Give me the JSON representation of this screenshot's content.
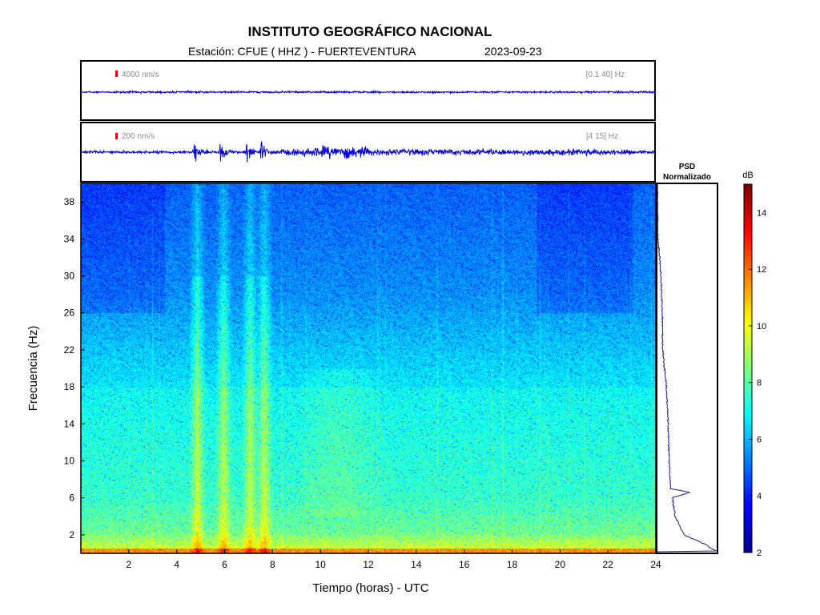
{
  "header": {
    "title": "INSTITUTO GEOGRÁFICO NACIONAL",
    "station": "Estación:  CFUE ( HHZ ) - FUERTEVENTURA",
    "date": "2023-09-23"
  },
  "trace_top": {
    "scale_label": "4000 nm/s",
    "band_label": "[0.1 40]  Hz",
    "scale_color": "#e00000"
  },
  "trace_bottom": {
    "scale_label": "200 nm/s",
    "band_label": "[4 15]  Hz",
    "scale_color": "#e00000"
  },
  "psd": {
    "title_line1": "PSD",
    "title_line2": "Normalizado"
  },
  "colorbar": {
    "unit": "dB",
    "ticks": [
      "2",
      "4",
      "6",
      "8",
      "10",
      "12",
      "14"
    ],
    "range": [
      2,
      15
    ]
  },
  "colors": {
    "trace": "#0000dd",
    "psd_line": "#1a1a8c"
  },
  "chart_data": {
    "type": "heatmap",
    "title": "INSTITUTO GEOGRÁFICO NACIONAL",
    "xlabel": "Tiempo (horas) - UTC",
    "ylabel": "Frecuencia  (Hz)",
    "xlim": [
      0,
      24
    ],
    "ylim": [
      0,
      40
    ],
    "x_ticks": [
      "2",
      "4",
      "6",
      "8",
      "10",
      "12",
      "14",
      "16",
      "18",
      "20",
      "22",
      "24"
    ],
    "y_ticks": [
      "2",
      "6",
      "10",
      "14",
      "18",
      "22",
      "26",
      "30",
      "34",
      "38"
    ],
    "colorscale": "jet",
    "value_range_db": [
      2,
      15
    ],
    "psd_profile": [
      {
        "f": 0.2,
        "v": 1.0
      },
      {
        "f": 1.0,
        "v": 0.8
      },
      {
        "f": 2.0,
        "v": 0.45
      },
      {
        "f": 4.0,
        "v": 0.3
      },
      {
        "f": 6.0,
        "v": 0.25
      },
      {
        "f": 6.6,
        "v": 0.55
      },
      {
        "f": 7.0,
        "v": 0.22
      },
      {
        "f": 10.0,
        "v": 0.2
      },
      {
        "f": 14.0,
        "v": 0.18
      },
      {
        "f": 18.0,
        "v": 0.15
      },
      {
        "f": 22.0,
        "v": 0.09
      },
      {
        "f": 26.0,
        "v": 0.08
      },
      {
        "f": 30.0,
        "v": 0.06
      },
      {
        "f": 34.0,
        "v": 0.01
      },
      {
        "f": 38.0,
        "v": 0.0
      },
      {
        "f": 40.0,
        "v": 0.0
      }
    ],
    "burst_hours": [
      4.7,
      5.8,
      6.9,
      7.5
    ],
    "tremor_band_hours": [
      9.0,
      12.5
    ]
  }
}
